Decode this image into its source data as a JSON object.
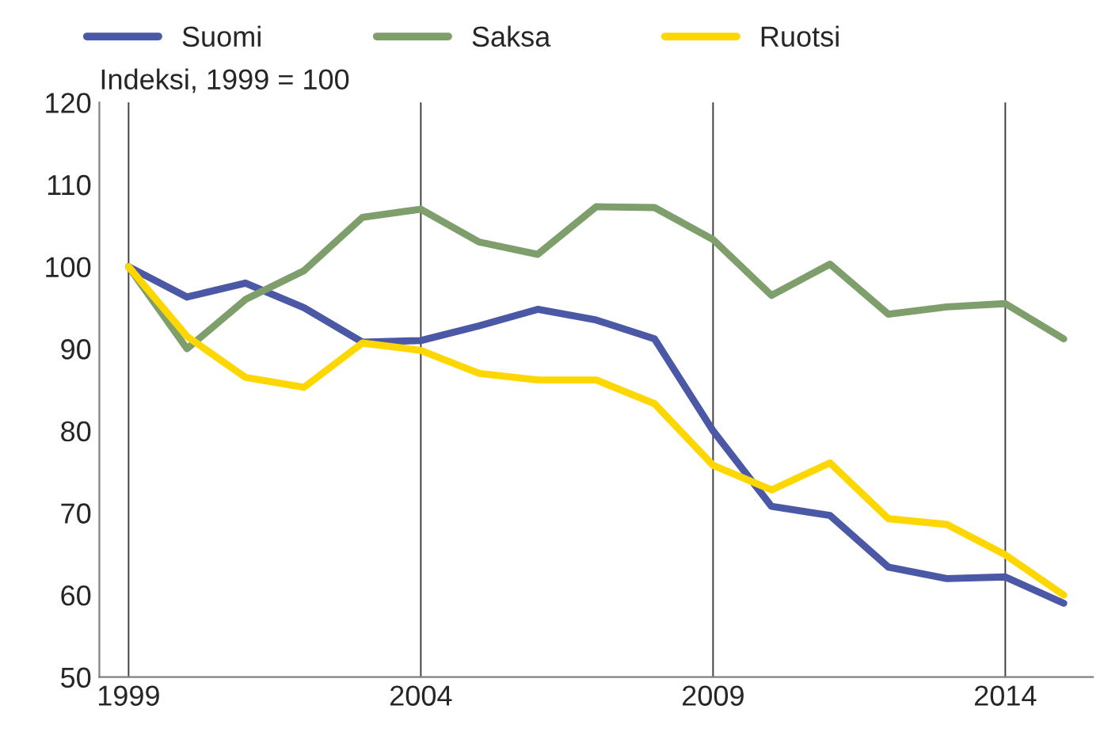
{
  "chart_data": {
    "type": "line",
    "ylabel": "Indeksi, 1999 = 100",
    "categories": [
      "1999",
      null,
      null,
      null,
      null,
      "2004",
      null,
      null,
      null,
      null,
      "2009",
      null,
      null,
      null,
      null,
      "2014",
      null
    ],
    "series": [
      {
        "name": "Suomi",
        "color": "#4a58a6",
        "values": [
          100,
          96.3,
          98,
          95,
          90.8,
          91,
          92.8,
          94.8,
          93.5,
          91.2,
          80,
          70.8,
          69.7,
          63.4,
          62,
          62.2,
          59
        ]
      },
      {
        "name": "Saksa",
        "color": "#7e9e6c",
        "values": [
          100,
          90,
          96,
          99.5,
          106,
          107,
          103,
          101.5,
          107.3,
          107.2,
          103.3,
          96.5,
          100.3,
          94.2,
          95.1,
          95.5,
          91.2
        ]
      },
      {
        "name": "Ruotsi",
        "color": "#ffd700",
        "values": [
          100,
          91.5,
          86.5,
          85.3,
          90.7,
          89.8,
          87,
          86.2,
          86.2,
          83.3,
          75.8,
          72.8,
          76.1,
          69.3,
          68.6,
          64.9,
          60
        ]
      }
    ],
    "ylim": [
      50,
      120
    ],
    "yticks": [
      50,
      60,
      70,
      80,
      90,
      100,
      110,
      120
    ],
    "grid": "x",
    "legend": "top",
    "marker": "none",
    "line_style": "solid"
  }
}
